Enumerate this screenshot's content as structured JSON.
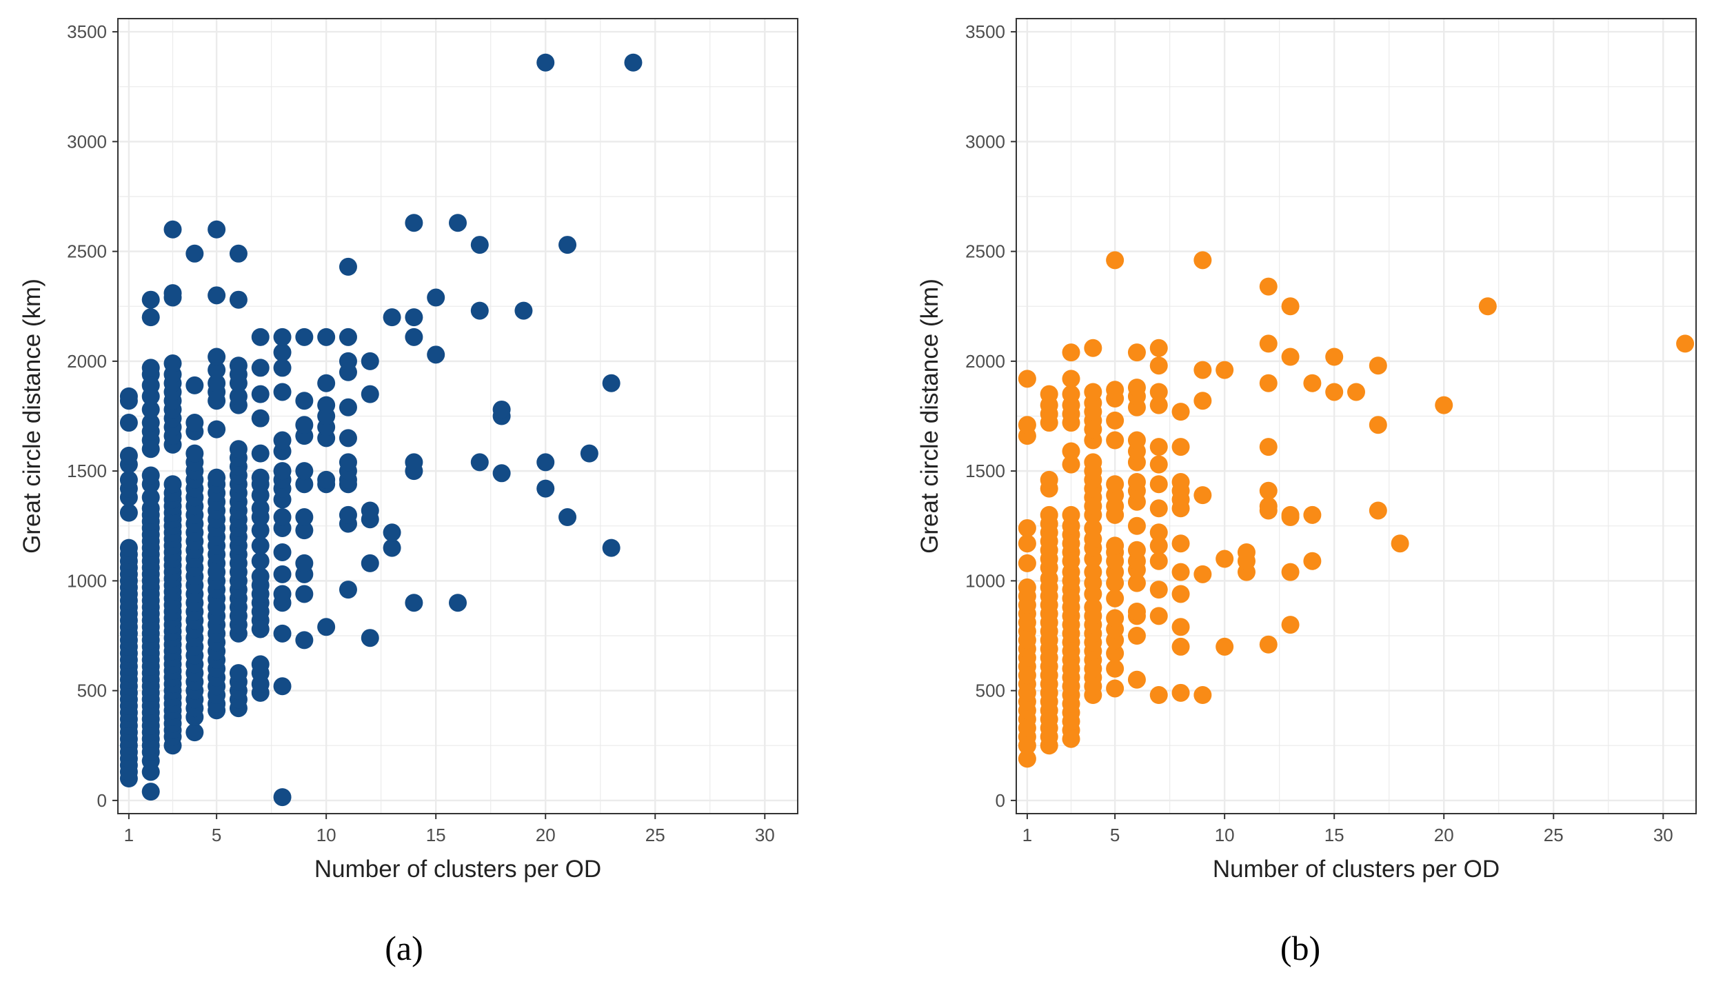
{
  "panel_labels": [
    "(a)",
    "(b)"
  ],
  "colors": {
    "series_a": "#134b86",
    "series_b": "#f98b16",
    "grid": "#ebebeb",
    "axis": "#333333"
  },
  "chart_data": [
    {
      "type": "scatter",
      "xlabel": "Number of clusters per OD",
      "ylabel": "Great circle distance (km)",
      "xlim": [
        0.5,
        31.5
      ],
      "ylim": [
        -60,
        3560
      ],
      "xticks": [
        1,
        5,
        10,
        15,
        20,
        25,
        30
      ],
      "yticks": [
        0,
        500,
        1000,
        1500,
        2000,
        2500,
        3000,
        3500
      ],
      "grid": true,
      "color": "#134b86",
      "columns": [
        {
          "x": 1,
          "y": [
            100,
            130,
            160,
            190,
            220,
            250,
            280,
            310,
            340,
            370,
            400,
            430,
            460,
            490,
            520,
            550,
            580,
            610,
            640,
            670,
            700,
            730,
            760,
            790,
            820,
            850,
            880,
            910,
            940,
            970,
            1000,
            1030,
            1060,
            1090,
            1120,
            1150,
            1310,
            1380,
            1420,
            1460,
            1530,
            1570,
            1720,
            1820,
            1840
          ]
        },
        {
          "x": 2,
          "y": [
            40,
            130,
            180,
            220,
            250,
            280,
            310,
            340,
            370,
            400,
            430,
            460,
            490,
            520,
            550,
            580,
            610,
            640,
            670,
            700,
            730,
            760,
            790,
            820,
            850,
            880,
            910,
            940,
            970,
            1000,
            1030,
            1060,
            1090,
            1120,
            1150,
            1180,
            1210,
            1240,
            1270,
            1300,
            1330,
            1380,
            1440,
            1480,
            1600,
            1640,
            1680,
            1720,
            1780,
            1840,
            1890,
            1940,
            1970,
            2200,
            2280
          ]
        },
        {
          "x": 3,
          "y": [
            250,
            290,
            320,
            350,
            380,
            410,
            440,
            470,
            500,
            530,
            560,
            590,
            620,
            650,
            680,
            710,
            740,
            770,
            800,
            830,
            860,
            890,
            920,
            950,
            980,
            1010,
            1040,
            1070,
            1100,
            1130,
            1160,
            1190,
            1220,
            1250,
            1280,
            1310,
            1340,
            1370,
            1400,
            1440,
            1620,
            1660,
            1700,
            1740,
            1780,
            1820,
            1860,
            1900,
            1940,
            1990,
            2290,
            2310,
            2600
          ]
        },
        {
          "x": 4,
          "y": [
            310,
            380,
            420,
            460,
            500,
            540,
            580,
            620,
            660,
            700,
            740,
            780,
            820,
            860,
            900,
            940,
            980,
            1020,
            1060,
            1100,
            1140,
            1180,
            1220,
            1260,
            1300,
            1340,
            1380,
            1420,
            1460,
            1500,
            1540,
            1580,
            1680,
            1720,
            1890,
            2490
          ]
        },
        {
          "x": 5,
          "y": [
            410,
            440,
            480,
            520,
            560,
            600,
            640,
            680,
            720,
            760,
            800,
            840,
            880,
            920,
            960,
            1000,
            1040,
            1080,
            1120,
            1160,
            1200,
            1240,
            1280,
            1320,
            1360,
            1400,
            1440,
            1470,
            1690,
            1820,
            1860,
            1900,
            1960,
            2020,
            2300,
            2600
          ]
        },
        {
          "x": 6,
          "y": [
            420,
            460,
            500,
            540,
            580,
            760,
            800,
            840,
            880,
            920,
            960,
            1000,
            1040,
            1080,
            1120,
            1160,
            1200,
            1240,
            1280,
            1320,
            1360,
            1400,
            1440,
            1480,
            1520,
            1560,
            1600,
            1800,
            1840,
            1900,
            1940,
            1980,
            2280,
            2490
          ]
        },
        {
          "x": 7,
          "y": [
            490,
            530,
            580,
            620,
            780,
            820,
            860,
            900,
            940,
            980,
            1020,
            1090,
            1160,
            1230,
            1290,
            1330,
            1390,
            1440,
            1470,
            1580,
            1740,
            1850,
            1970,
            2110
          ]
        },
        {
          "x": 8,
          "y": [
            15,
            520,
            760,
            900,
            940,
            1030,
            1130,
            1240,
            1290,
            1370,
            1420,
            1460,
            1500,
            1590,
            1640,
            1860,
            1970,
            2040,
            2110
          ]
        },
        {
          "x": 9,
          "y": [
            730,
            940,
            1030,
            1080,
            1230,
            1290,
            1440,
            1500,
            1660,
            1710,
            1820,
            2110
          ]
        },
        {
          "x": 10,
          "y": [
            790,
            1440,
            1460,
            1650,
            1700,
            1750,
            1800,
            1900,
            2110
          ]
        },
        {
          "x": 11,
          "y": [
            960,
            1260,
            1300,
            1440,
            1460,
            1500,
            1540,
            1650,
            1790,
            1950,
            2000,
            2110,
            2430
          ]
        },
        {
          "x": 12,
          "y": [
            740,
            1080,
            1280,
            1320,
            1850,
            2000
          ]
        },
        {
          "x": 13,
          "y": [
            1150,
            1220,
            2200
          ]
        },
        {
          "x": 14,
          "y": [
            900,
            1500,
            1540,
            2110,
            2200,
            2630
          ]
        },
        {
          "x": 15,
          "y": [
            2030,
            2290
          ]
        },
        {
          "x": 16,
          "y": [
            900,
            2630
          ]
        },
        {
          "x": 17,
          "y": [
            1540,
            2230,
            2530
          ]
        },
        {
          "x": 18,
          "y": [
            1490,
            1750,
            1780
          ]
        },
        {
          "x": 19,
          "y": [
            2230
          ]
        },
        {
          "x": 20,
          "y": [
            1420,
            1540,
            3360
          ]
        },
        {
          "x": 21,
          "y": [
            1290,
            2530
          ]
        },
        {
          "x": 22,
          "y": [
            1580
          ]
        },
        {
          "x": 23,
          "y": [
            1150,
            1900
          ]
        },
        {
          "x": 24,
          "y": [
            3360
          ]
        }
      ]
    },
    {
      "type": "scatter",
      "xlabel": "Number of clusters per OD",
      "ylabel": "Great circle distance (km)",
      "xlim": [
        0.5,
        31.5
      ],
      "ylim": [
        -60,
        3560
      ],
      "xticks": [
        1,
        5,
        10,
        15,
        20,
        25,
        30
      ],
      "yticks": [
        0,
        500,
        1000,
        1500,
        2000,
        2500,
        3000,
        3500
      ],
      "grid": true,
      "color": "#f98b16",
      "columns": [
        {
          "x": 1,
          "y": [
            190,
            250,
            290,
            330,
            370,
            410,
            450,
            490,
            530,
            570,
            610,
            650,
            690,
            730,
            770,
            810,
            850,
            890,
            930,
            970,
            1080,
            1170,
            1240,
            1660,
            1710,
            1920
          ]
        },
        {
          "x": 2,
          "y": [
            250,
            290,
            330,
            370,
            410,
            450,
            490,
            530,
            570,
            610,
            650,
            690,
            730,
            770,
            810,
            850,
            890,
            930,
            970,
            1010,
            1060,
            1100,
            1140,
            1180,
            1220,
            1260,
            1300,
            1420,
            1460,
            1720,
            1760,
            1800,
            1850
          ]
        },
        {
          "x": 3,
          "y": [
            280,
            320,
            360,
            400,
            440,
            480,
            520,
            560,
            600,
            640,
            680,
            720,
            760,
            800,
            840,
            880,
            920,
            960,
            1000,
            1040,
            1090,
            1130,
            1170,
            1210,
            1250,
            1300,
            1530,
            1590,
            1720,
            1760,
            1800,
            1850,
            1920,
            2040
          ]
        },
        {
          "x": 4,
          "y": [
            480,
            520,
            560,
            600,
            640,
            680,
            720,
            760,
            800,
            840,
            880,
            940,
            990,
            1040,
            1100,
            1150,
            1190,
            1240,
            1300,
            1340,
            1380,
            1420,
            1460,
            1500,
            1540,
            1640,
            1690,
            1730,
            1770,
            1810,
            1860,
            2060
          ]
        },
        {
          "x": 5,
          "y": [
            510,
            600,
            670,
            730,
            780,
            830,
            920,
            990,
            1040,
            1090,
            1130,
            1160,
            1300,
            1340,
            1390,
            1440,
            1640,
            1730,
            1830,
            1870,
            2460
          ]
        },
        {
          "x": 6,
          "y": [
            550,
            750,
            840,
            860,
            990,
            1050,
            1090,
            1140,
            1250,
            1360,
            1410,
            1450,
            1540,
            1590,
            1640,
            1790,
            1840,
            1880,
            2040
          ]
        },
        {
          "x": 7,
          "y": [
            480,
            840,
            960,
            1090,
            1160,
            1220,
            1330,
            1440,
            1530,
            1610,
            1800,
            1860,
            1980,
            2060
          ]
        },
        {
          "x": 8,
          "y": [
            490,
            700,
            790,
            940,
            1040,
            1170,
            1330,
            1370,
            1410,
            1450,
            1610,
            1770
          ]
        },
        {
          "x": 9,
          "y": [
            480,
            1030,
            1390,
            1820,
            1960,
            2460
          ]
        },
        {
          "x": 10,
          "y": [
            700,
            1100,
            1960
          ]
        },
        {
          "x": 11,
          "y": [
            1040,
            1090,
            1130
          ]
        },
        {
          "x": 12,
          "y": [
            710,
            1320,
            1340,
            1410,
            1610,
            1900,
            2080,
            2340
          ]
        },
        {
          "x": 13,
          "y": [
            800,
            1040,
            1290,
            1300,
            2020,
            2250
          ]
        },
        {
          "x": 14,
          "y": [
            1090,
            1300,
            1900
          ]
        },
        {
          "x": 15,
          "y": [
            1860,
            2020
          ]
        },
        {
          "x": 16,
          "y": [
            1860
          ]
        },
        {
          "x": 17,
          "y": [
            1320,
            1710,
            1980
          ]
        },
        {
          "x": 18,
          "y": [
            1170
          ]
        },
        {
          "x": 20,
          "y": [
            1800
          ]
        },
        {
          "x": 22,
          "y": [
            2250
          ]
        },
        {
          "x": 31,
          "y": [
            2080
          ]
        }
      ]
    }
  ]
}
